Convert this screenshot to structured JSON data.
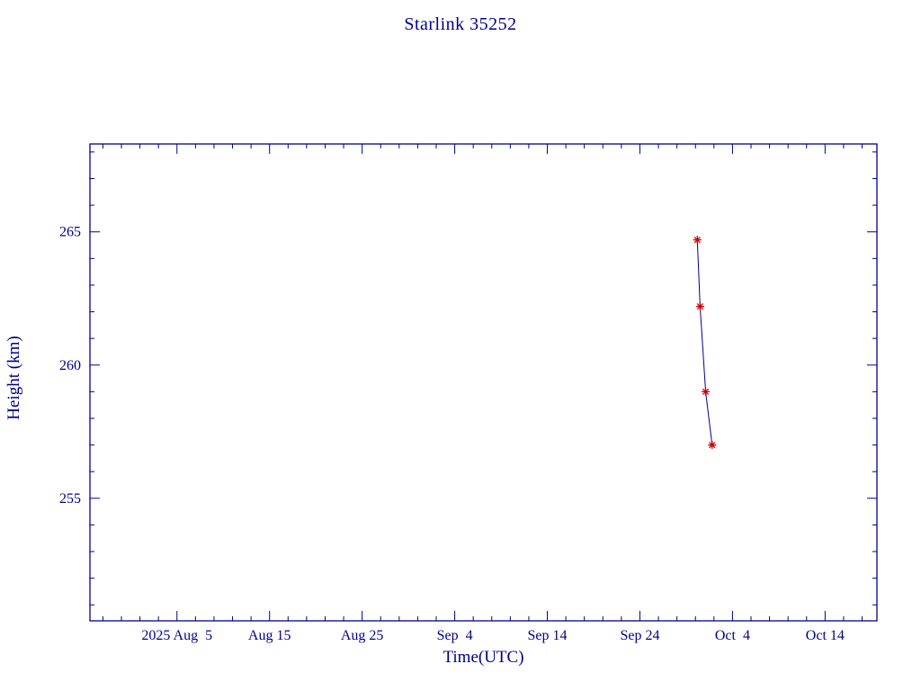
{
  "page": {
    "background": "#ffffff"
  },
  "chart_data": {
    "type": "line",
    "title": "Starlink 35252",
    "xlabel": "Time(UTC)",
    "ylabel": "Height (km)",
    "x_unit": "days since 2025 Aug 5 (UTC)",
    "xlim": [
      -9.4,
      75.6
    ],
    "ylim": [
      250.4,
      268.3
    ],
    "grid": false,
    "legend": "none",
    "x_major_ticks": [
      {
        "value": 0,
        "label": "2025 Aug  5"
      },
      {
        "value": 10,
        "label": "Aug 15"
      },
      {
        "value": 20,
        "label": "Aug 25"
      },
      {
        "value": 30,
        "label": "Sep  4"
      },
      {
        "value": 40,
        "label": "Sep 14"
      },
      {
        "value": 50,
        "label": "Sep 24"
      },
      {
        "value": 60,
        "label": "Oct  4"
      },
      {
        "value": 70,
        "label": "Oct 14"
      }
    ],
    "x_minor_step": 2,
    "y_major_ticks": [
      {
        "value": 255,
        "label": "255"
      },
      {
        "value": 260,
        "label": "260"
      },
      {
        "value": 265,
        "label": "265"
      }
    ],
    "y_minor_step": 1,
    "series": [
      {
        "name": "Starlink 35252 height",
        "marker": "asterisk",
        "points": [
          {
            "x": 56.2,
            "date": "2025 Sep 30",
            "height_km": 264.7
          },
          {
            "x": 56.5,
            "date": "2025 Sep 30",
            "height_km": 262.2
          },
          {
            "x": 57.1,
            "date": "2025 Oct 1",
            "height_km": 259.0
          },
          {
            "x": 57.8,
            "date": "2025 Oct 1",
            "height_km": 257.0
          }
        ]
      }
    ]
  },
  "colors": {
    "text": "#00008b",
    "axis": "#00008b",
    "line": "#00008b",
    "marker": "#cc0000",
    "background": "#ffffff"
  }
}
